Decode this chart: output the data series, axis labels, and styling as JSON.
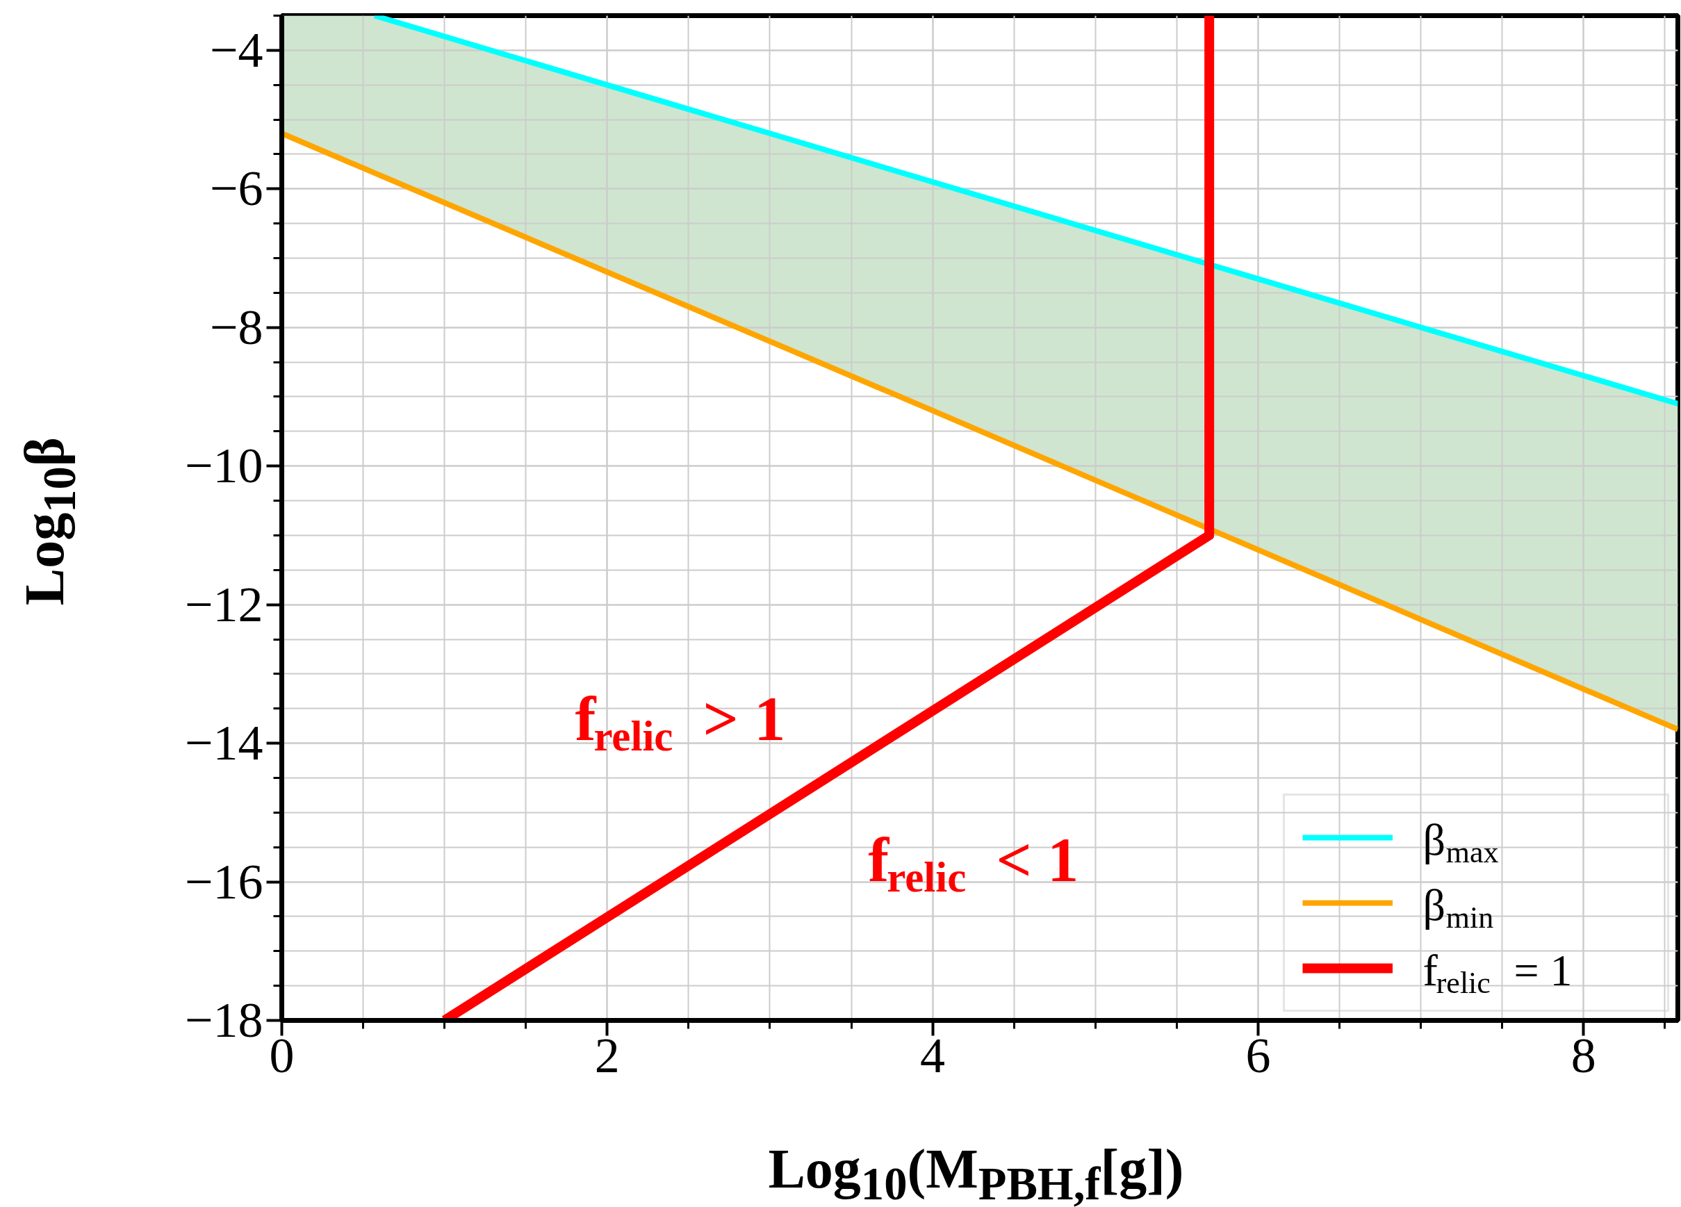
{
  "chart_data": {
    "type": "line",
    "xlabel": "Log$_{10}$(M$_{PBH,f}$[g])",
    "ylabel": "Log$_{10}$β",
    "xlim": [
      0,
      8.58
    ],
    "ylim": [
      -18,
      -3.5
    ],
    "xticks": [
      0,
      2,
      4,
      6,
      8
    ],
    "yticks": [
      -18,
      -16,
      -14,
      -12,
      -10,
      -8,
      -6,
      -4
    ],
    "grid": true,
    "legend": "bottom right",
    "series": [
      {
        "name": "β$_{max}$",
        "color": "#00ffff",
        "x": [
          0.57,
          3,
          6,
          8.58
        ],
        "values": [
          -3.5,
          -5.2,
          -7.3,
          -9.1
        ]
      },
      {
        "name": "β$_{min}$",
        "color": "#ffa500",
        "x": [
          0,
          0.57,
          4,
          8.58
        ],
        "values": [
          -5.2,
          -5.77,
          -9.2,
          -13.8
        ],
        "lower": [
          -5.2,
          -5.77,
          -9.2,
          -13.8
        ],
        "upper": [
          -3.5,
          -3.5,
          -5.9,
          -9.1
        ]
      },
      {
        "name": "f$_{relic}$ = 1",
        "color": "#ff0000",
        "x": [
          1,
          5.7,
          5.7
        ],
        "values": [
          -18,
          -11,
          -3.5
        ]
      }
    ],
    "annotations": [
      "f$_{relic}$ > 1",
      "f$_{relic}$ < 1"
    ]
  }
}
